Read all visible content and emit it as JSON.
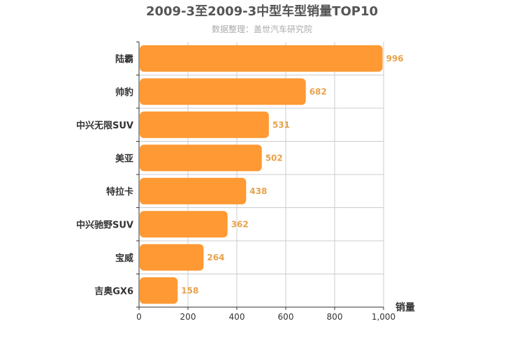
{
  "chart_data": {
    "type": "bar",
    "orientation": "horizontal",
    "title": "2009-3至2009-3中型车型销量TOP10",
    "subtitle": "数据整理：盖世汽车研究院",
    "categories": [
      "陆霸",
      "帅豹",
      "中兴无限SUV",
      "美亚",
      "特拉卡",
      "中兴驰野SUV",
      "宝威",
      "吉奥GX6"
    ],
    "values": [
      996,
      682,
      531,
      502,
      438,
      362,
      264,
      158
    ],
    "value_labels": [
      "996",
      "682",
      "531",
      "502",
      "438",
      "362",
      "264",
      "158"
    ],
    "xlabel": "销量",
    "ylabel": "",
    "xlim": [
      0,
      1000
    ],
    "x_ticks": [
      0,
      200,
      400,
      600,
      800,
      1000
    ],
    "x_tick_labels": [
      "0",
      "200",
      "400",
      "600",
      "800",
      "1,000"
    ],
    "grid": true,
    "legend": "none",
    "colors": {
      "bar": "#ff9933",
      "value_label": "#e8a24a",
      "grid": "#cccccc",
      "axis": "#333333"
    }
  }
}
